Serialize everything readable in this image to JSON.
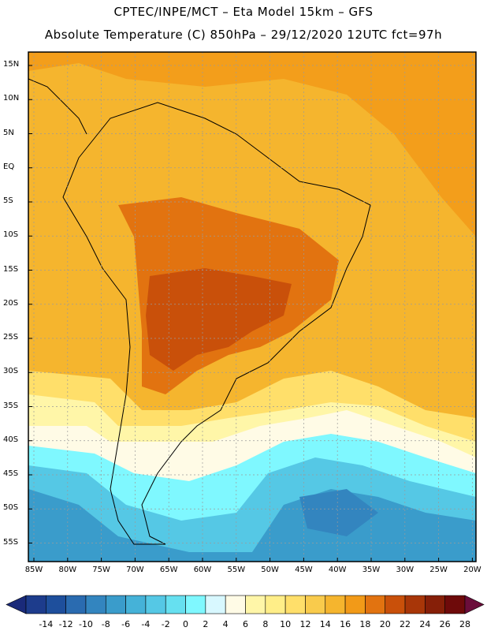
{
  "title_line1": "CPTEC/INPE/MCT –  Eta Model 15km – GFS",
  "title_line2": "Absolute Temperature (C) 850hPa – 29/12/2020 12UTC fct=97h",
  "lat_labels": [
    "15N",
    "10N",
    "5N",
    "EQ",
    "5S",
    "10S",
    "15S",
    "20S",
    "25S",
    "30S",
    "35S",
    "40S",
    "45S",
    "50S",
    "55S"
  ],
  "lon_labels": [
    "85W",
    "80W",
    "75W",
    "70W",
    "65W",
    "60W",
    "55W",
    "50W",
    "45W",
    "40W",
    "35W",
    "30W",
    "25W",
    "20W"
  ],
  "colorbar": {
    "labels": [
      "-14",
      "-12",
      "-10",
      "-8",
      "-6",
      "-4",
      "-2",
      "0",
      "2",
      "4",
      "6",
      "8",
      "10",
      "12",
      "14",
      "16",
      "18",
      "20",
      "22",
      "24",
      "26",
      "28"
    ],
    "colors": [
      "#1d3c8c",
      "#1e4f9c",
      "#2a6bb0",
      "#3385bf",
      "#3a9ccb",
      "#45b2d8",
      "#55c8e5",
      "#66e0f0",
      "#7ff8ff",
      "#d8f8ff",
      "#fffbe6",
      "#fff6a8",
      "#ffee88",
      "#ffdf6a",
      "#f9cb4c",
      "#f5b52e",
      "#f29a18",
      "#e27310",
      "#c9500a",
      "#a83608",
      "#861f08",
      "#6e0a0a"
    ],
    "low_color": "#1a2a7a",
    "high_color": "#6b0d3a"
  }
}
